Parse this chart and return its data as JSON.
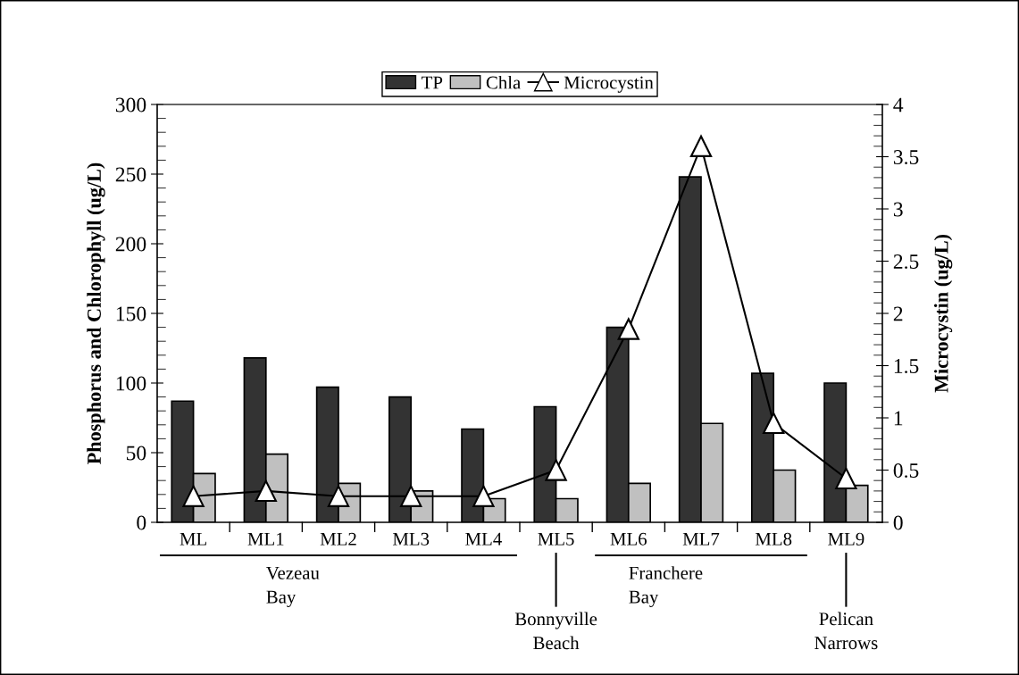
{
  "chart_data": {
    "type": "bar",
    "categories": [
      "ML",
      "ML1",
      "ML2",
      "ML3",
      "ML4",
      "ML5",
      "ML6",
      "ML7",
      "ML8",
      "ML9"
    ],
    "series": [
      {
        "name": "TP",
        "color": "#333333",
        "values": [
          87,
          118,
          97,
          90,
          67,
          83,
          140,
          248,
          107,
          100
        ]
      },
      {
        "name": "Chla",
        "color": "#c0c0c0",
        "values": [
          35,
          49,
          28,
          22.5,
          17,
          17,
          28,
          71,
          37.5,
          26.5
        ]
      },
      {
        "name": "Microcystin",
        "type": "line",
        "axis": "y2",
        "color": "#000000",
        "marker": "triangle",
        "values": [
          0.25,
          0.3,
          0.25,
          0.25,
          0.25,
          0.5,
          1.85,
          3.6,
          0.95,
          0.42
        ]
      }
    ],
    "ylabel": "Phosphorus and Chlorophyll (ug/L)",
    "y2label": "Microcystin (ug/L)",
    "ylim": [
      0,
      300
    ],
    "yticks": [
      0,
      50,
      100,
      150,
      200,
      250,
      300
    ],
    "y2lim": [
      0,
      4
    ],
    "y2ticks": [
      0,
      0.5,
      1,
      1.5,
      2,
      2.5,
      3,
      3.5,
      4
    ],
    "annotations": [
      "Vezeau\nBay",
      "Bonnyville\nBeach",
      "Franchere\nBay",
      "Pelican\nNarrows"
    ],
    "legend": "top",
    "grid": false
  }
}
